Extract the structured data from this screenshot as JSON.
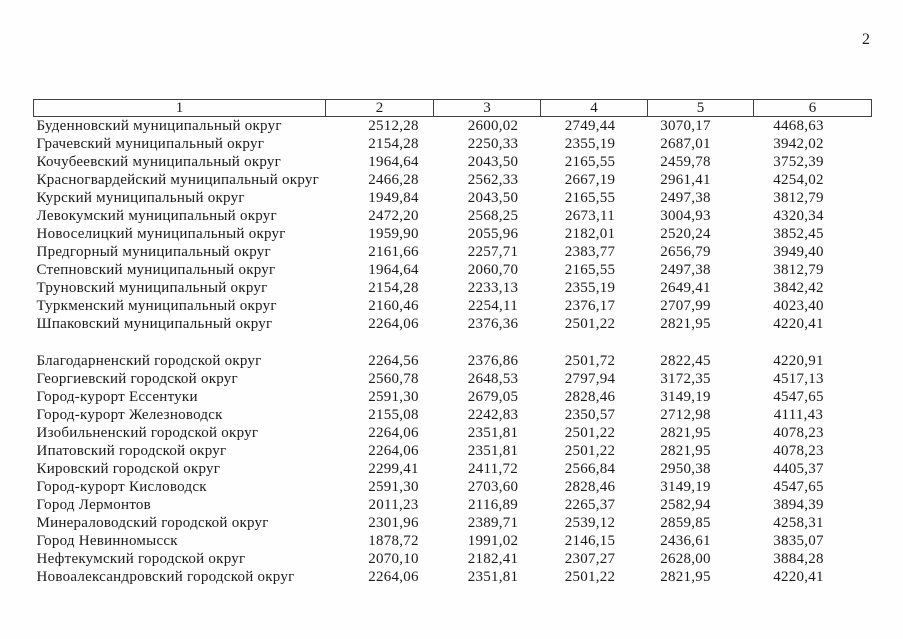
{
  "page": {
    "number": "2"
  },
  "table": {
    "headers": [
      "1",
      "2",
      "3",
      "4",
      "5",
      "6"
    ],
    "groups": [
      {
        "rows": [
          {
            "name": "Буденновский муниципальный округ",
            "values": [
              "2512,28",
              "2600,02",
              "2749,44",
              "3070,17",
              "4468,63"
            ]
          },
          {
            "name": "Грачевский муниципальный округ",
            "values": [
              "2154,28",
              "2250,33",
              "2355,19",
              "2687,01",
              "3942,02"
            ]
          },
          {
            "name": "Кочубеевский муниципальный округ",
            "values": [
              "1964,64",
              "2043,50",
              "2165,55",
              "2459,78",
              "3752,39"
            ]
          },
          {
            "name": "Красногвардейский муниципальный округ",
            "values": [
              "2466,28",
              "2562,33",
              "2667,19",
              "2961,41",
              "4254,02"
            ]
          },
          {
            "name": "Курский муниципальный округ",
            "values": [
              "1949,84",
              "2043,50",
              "2165,55",
              "2497,38",
              "3812,79"
            ]
          },
          {
            "name": "Левокумский муниципальный округ",
            "values": [
              "2472,20",
              "2568,25",
              "2673,11",
              "3004,93",
              "4320,34"
            ]
          },
          {
            "name": "Новоселицкий муниципальный округ",
            "values": [
              "1959,90",
              "2055,96",
              "2182,01",
              "2520,24",
              "3852,45"
            ]
          },
          {
            "name": "Предгорный муниципальный округ",
            "values": [
              "2161,66",
              "2257,71",
              "2383,77",
              "2656,79",
              "3949,40"
            ]
          },
          {
            "name": "Степновский муниципальный округ",
            "values": [
              "1964,64",
              "2060,70",
              "2165,55",
              "2497,38",
              "3812,79"
            ]
          },
          {
            "name": "Труновский муниципальный округ",
            "values": [
              "2154,28",
              "2233,13",
              "2355,19",
              "2649,41",
              "3842,42"
            ]
          },
          {
            "name": "Туркменский муниципальный округ",
            "values": [
              "2160,46",
              "2254,11",
              "2376,17",
              "2707,99",
              "4023,40"
            ]
          },
          {
            "name": "Шпаковский муниципальный округ",
            "values": [
              "2264,06",
              "2376,36",
              "2501,22",
              "2821,95",
              "4220,41"
            ]
          }
        ]
      },
      {
        "rows": [
          {
            "name": "Благодарненский городской округ",
            "values": [
              "2264,56",
              "2376,86",
              "2501,72",
              "2822,45",
              "4220,91"
            ]
          },
          {
            "name": "Георгиевский городской округ",
            "values": [
              "2560,78",
              "2648,53",
              "2797,94",
              "3172,35",
              "4517,13"
            ]
          },
          {
            "name": "Город-курорт Ессентуки",
            "values": [
              "2591,30",
              "2679,05",
              "2828,46",
              "3149,19",
              "4547,65"
            ]
          },
          {
            "name": "Город-курорт Железноводск",
            "values": [
              "2155,08",
              "2242,83",
              "2350,57",
              "2712,98",
              "4111,43"
            ]
          },
          {
            "name": "Изобильненский городской округ",
            "values": [
              "2264,06",
              "2351,81",
              "2501,22",
              "2821,95",
              "4078,23"
            ]
          },
          {
            "name": "Ипатовский городской округ",
            "values": [
              "2264,06",
              "2351,81",
              "2501,22",
              "2821,95",
              "4078,23"
            ]
          },
          {
            "name": "Кировский городской округ",
            "values": [
              "2299,41",
              "2411,72",
              "2566,84",
              "2950,38",
              "4405,37"
            ]
          },
          {
            "name": "Город-курорт Кисловодск",
            "values": [
              "2591,30",
              "2703,60",
              "2828,46",
              "3149,19",
              "4547,65"
            ]
          },
          {
            "name": "Город Лермонтов",
            "values": [
              "2011,23",
              "2116,89",
              "2265,37",
              "2582,94",
              "3894,39"
            ]
          },
          {
            "name": "Минераловодский городской округ",
            "values": [
              "2301,96",
              "2389,71",
              "2539,12",
              "2859,85",
              "4258,31"
            ]
          },
          {
            "name": "Город Невинномысск",
            "values": [
              "1878,72",
              "1991,02",
              "2146,15",
              "2436,61",
              "3835,07"
            ]
          },
          {
            "name": "Нефтекумский городской округ",
            "values": [
              "2070,10",
              "2182,41",
              "2307,27",
              "2628,00",
              "3884,28"
            ]
          },
          {
            "name": "Новоалександровский городской округ",
            "values": [
              "2264,06",
              "2351,81",
              "2501,22",
              "2821,95",
              "4220,41"
            ]
          }
        ]
      }
    ]
  }
}
